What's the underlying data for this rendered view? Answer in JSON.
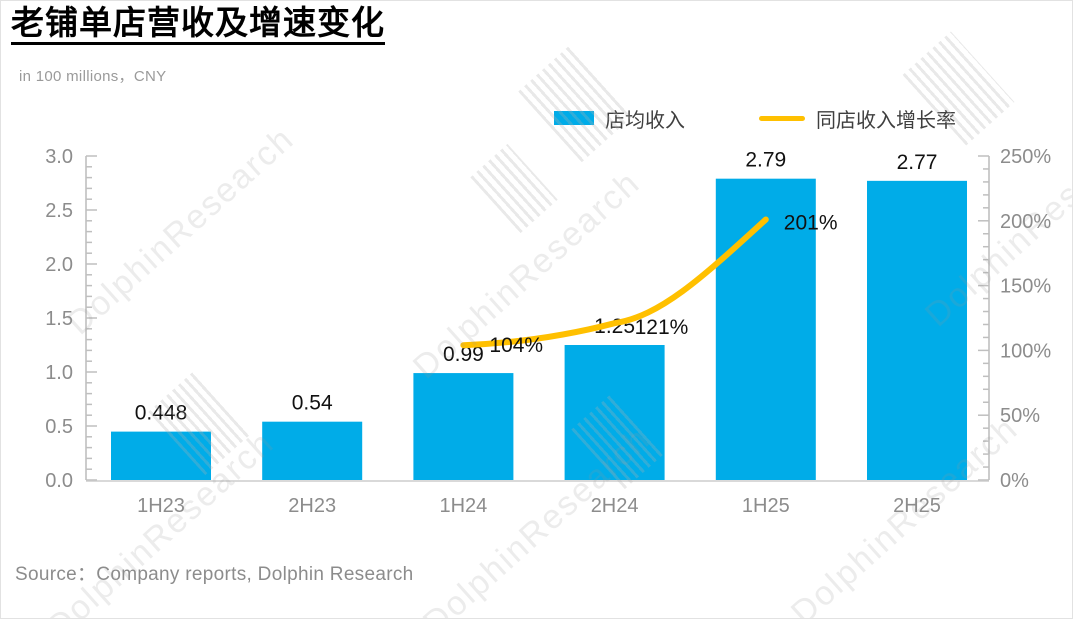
{
  "header": {
    "title": "老铺单店营收及增速变化",
    "subtitle": "in 100 millions，CNY"
  },
  "legend": {
    "bar_label": "店均收入",
    "line_label": "同店收入增长率"
  },
  "footer": {
    "source": "Source：Company reports, Dolphin Research"
  },
  "watermark": {
    "text": "DolphinResearch"
  },
  "colors": {
    "bar": "#00ACE8",
    "line": "#FFC000",
    "axis": "#BFBFBF",
    "baseline": "#D9D9D9",
    "tick_label": "#8c8c8c",
    "value_label": "#111111"
  },
  "chart_data": {
    "type": "bar",
    "title": "老铺单店营收及增速变化",
    "subtitle": "in 100 millions，CNY",
    "categories": [
      "1H23",
      "2H23",
      "1H24",
      "2H24",
      "1H25",
      "2H25"
    ],
    "series": [
      {
        "name": "店均收入",
        "type": "bar",
        "axis": "left",
        "color": "#00ACE8",
        "values": [
          0.448,
          0.54,
          0.99,
          1.25,
          2.79,
          2.77
        ],
        "labels": [
          "0.448",
          "0.54",
          "0.99",
          "1.25",
          "2.79",
          "2.77"
        ]
      },
      {
        "name": "同店收入增长率",
        "type": "line",
        "axis": "right",
        "color": "#FFC000",
        "values": [
          null,
          null,
          104,
          121,
          201,
          null
        ],
        "labels": [
          null,
          null,
          "104%",
          "121%",
          "201%",
          null
        ]
      }
    ],
    "left_axis": {
      "min": 0,
      "max": 3.0,
      "step": 0.5,
      "minor_step": 0.1,
      "tick_labels": [
        "0.0",
        "0.5",
        "1.0",
        "1.5",
        "2.0",
        "2.5",
        "3.0"
      ]
    },
    "right_axis": {
      "min": 0,
      "max": 250,
      "step": 50,
      "minor_step": 10,
      "tick_labels": [
        "0%",
        "50%",
        "100%",
        "150%",
        "200%",
        "250%"
      ]
    },
    "grid": false,
    "legend_position": "top"
  }
}
